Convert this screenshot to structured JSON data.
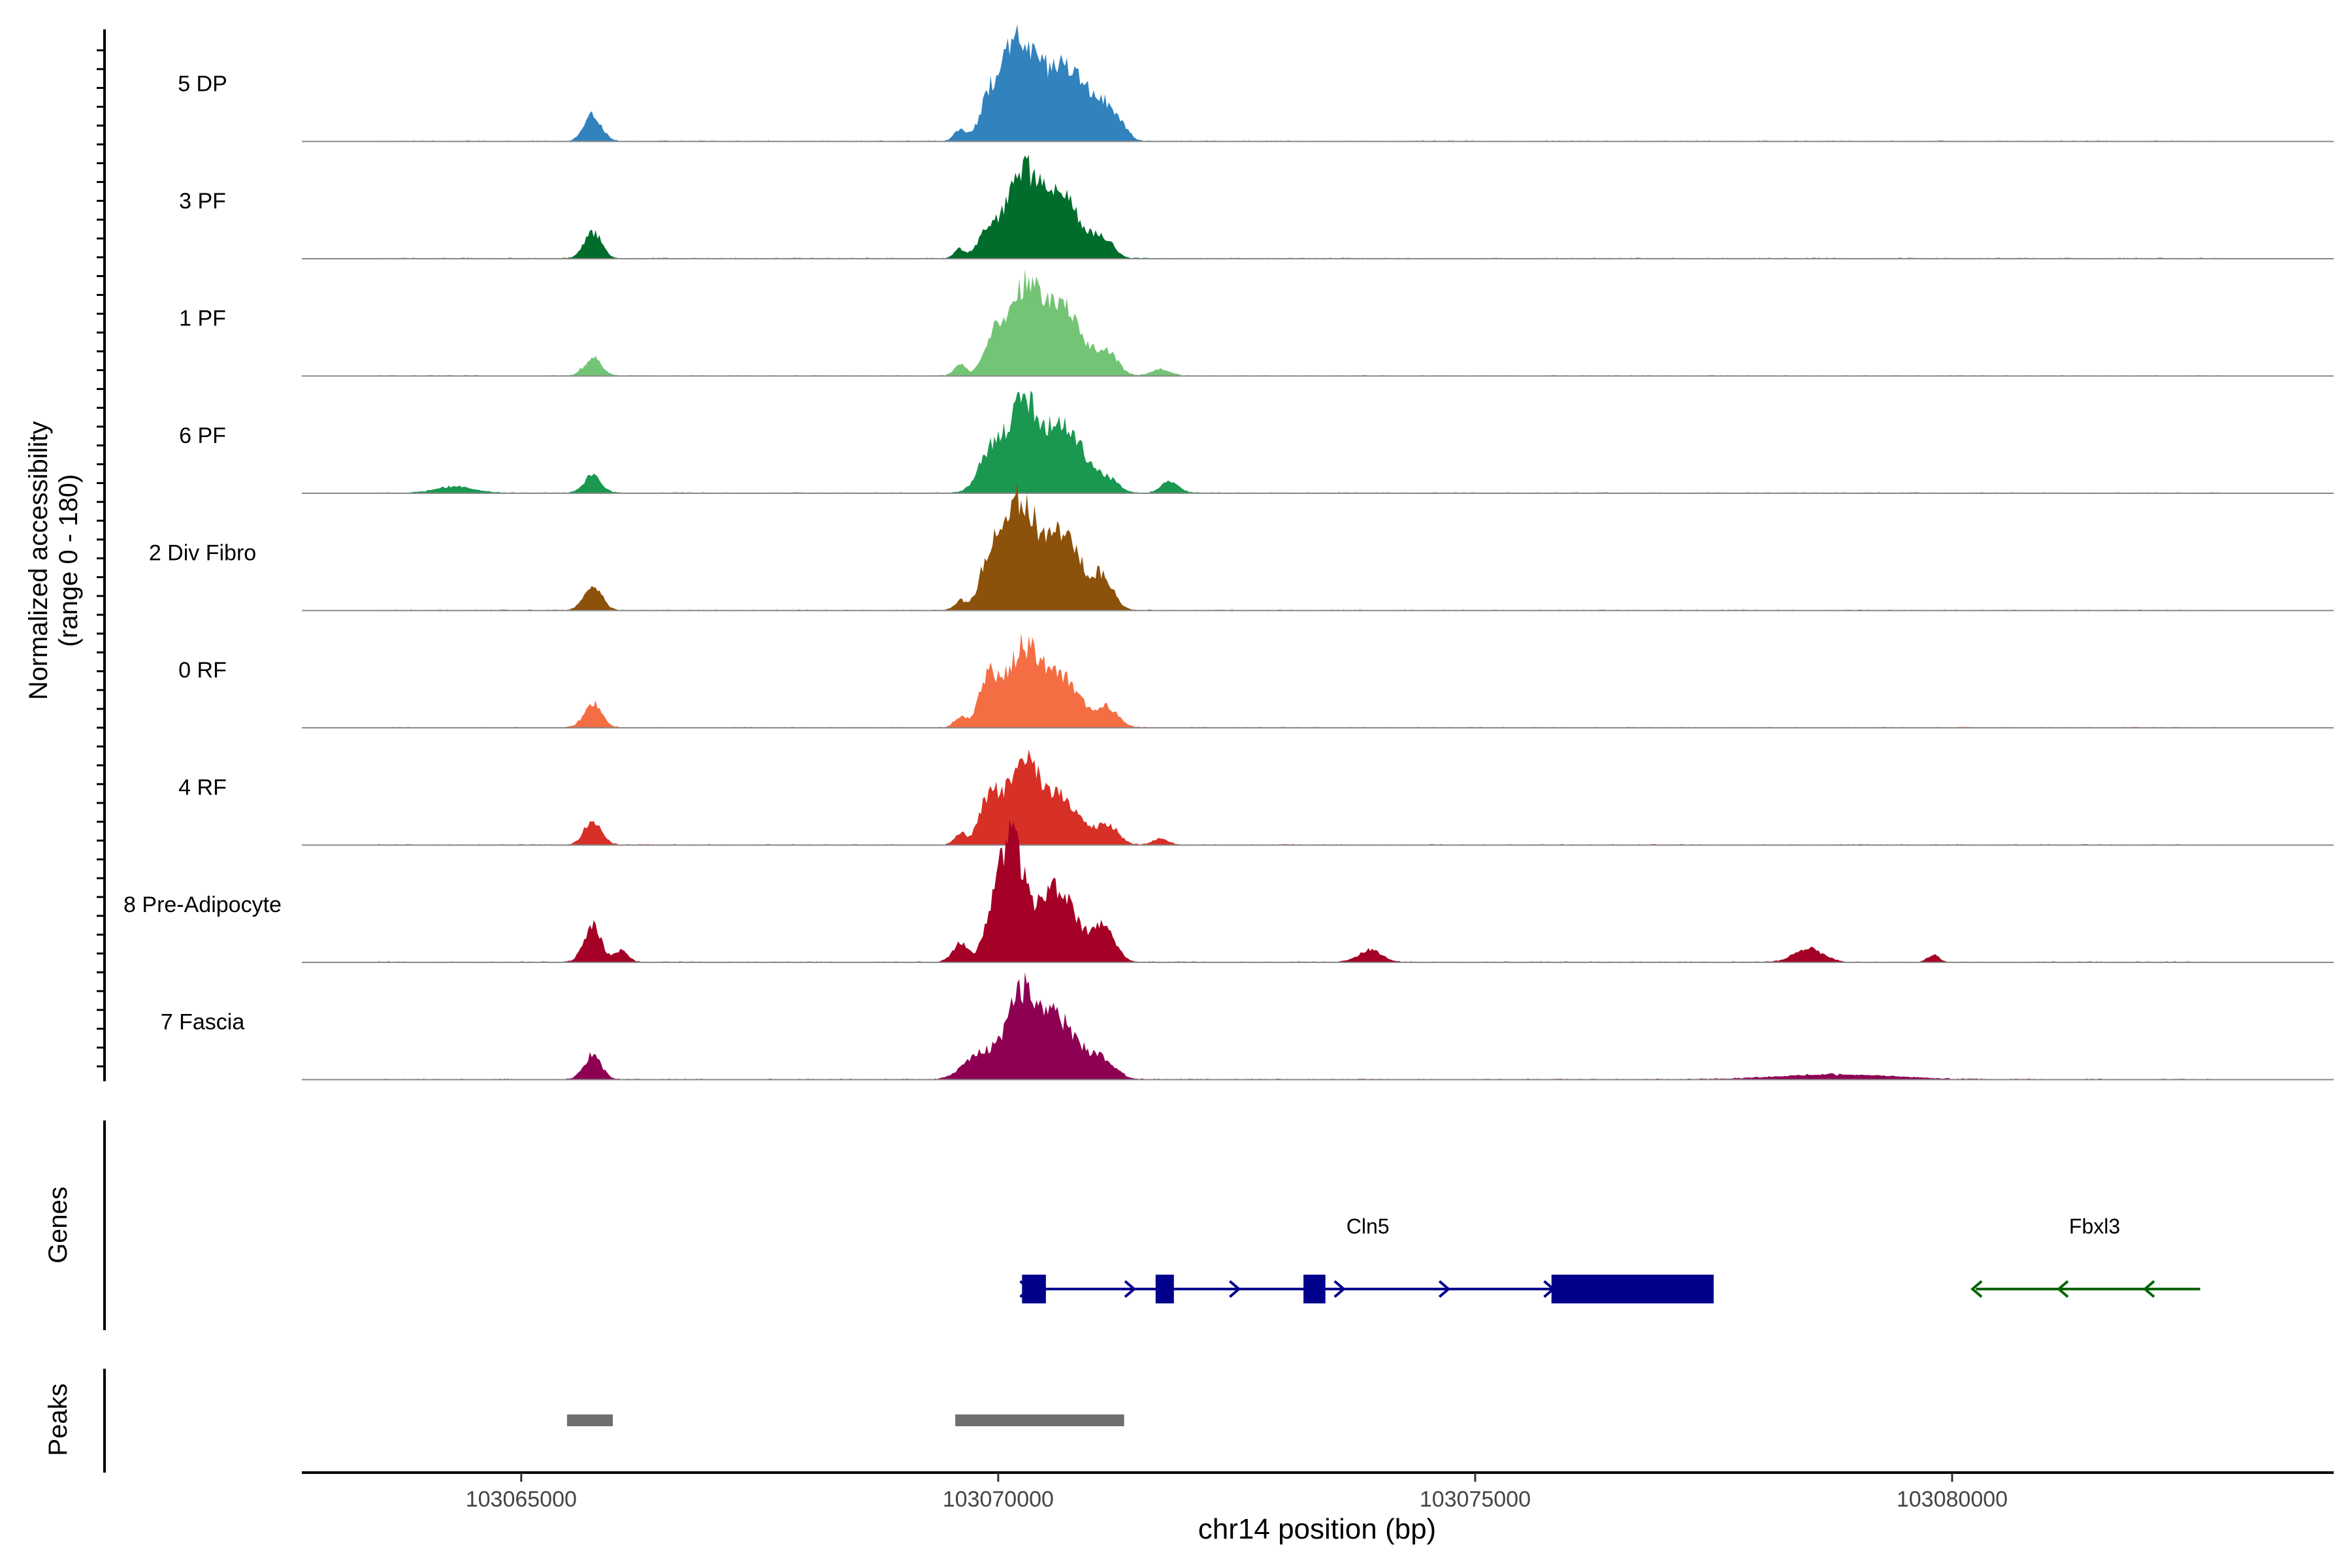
{
  "chart_data": {
    "type": "area",
    "title": "",
    "chromosome": "chr14",
    "xlabel": "chr14 position (bp)",
    "xlim": [
      103062700,
      103084000
    ],
    "x_ticks": [
      103065000,
      103070000,
      103075000,
      103080000
    ],
    "x_tick_labels": [
      "103065000",
      "103070000",
      "103075000",
      "103080000"
    ],
    "coverage_ylabel_line1": "Normalized accessibility",
    "coverage_ylabel_line2": "(range 0 - 180)",
    "ylim": [
      0,
      180
    ],
    "genes_label": "Genes",
    "peaks_label": "Peaks",
    "series": [
      {
        "name": "5 DP",
        "color": "#3182BD",
        "peaks": [
          [
            103065750,
            42,
            90
          ],
          [
            103069600,
            20,
            60
          ],
          [
            103069900,
            45,
            100
          ],
          [
            103070200,
            155,
            180
          ],
          [
            103070700,
            120,
            220
          ],
          [
            103071100,
            45,
            120
          ],
          [
            103071300,
            15,
            80
          ]
        ]
      },
      {
        "name": "3 PF",
        "color": "#006D2C",
        "peaks": [
          [
            103065750,
            42,
            90
          ],
          [
            103069600,
            15,
            60
          ],
          [
            103069900,
            48,
            100
          ],
          [
            103070250,
            130,
            160
          ],
          [
            103070650,
            100,
            200
          ],
          [
            103071100,
            28,
            110
          ]
        ]
      },
      {
        "name": "1 PF",
        "color": "#74C476",
        "peaks": [
          [
            103065750,
            28,
            90
          ],
          [
            103069600,
            18,
            60
          ],
          [
            103069950,
            60,
            100
          ],
          [
            103070300,
            140,
            170
          ],
          [
            103070700,
            100,
            200
          ],
          [
            103071150,
            32,
            110
          ],
          [
            103071700,
            10,
            100
          ]
        ]
      },
      {
        "name": "6 PF",
        "color": "#1A9850",
        "peaks": [
          [
            103065750,
            28,
            90
          ],
          [
            103064300,
            10,
            200
          ],
          [
            103069900,
            55,
            120
          ],
          [
            103070250,
            140,
            170
          ],
          [
            103070700,
            105,
            200
          ],
          [
            103071150,
            20,
            110
          ],
          [
            103071800,
            20,
            90
          ]
        ]
      },
      {
        "name": "2 Div Fibro",
        "color": "#8C510A",
        "peaks": [
          [
            103065750,
            42,
            90
          ],
          [
            103069600,
            15,
            60
          ],
          [
            103069900,
            70,
            100
          ],
          [
            103070200,
            175,
            160
          ],
          [
            103070650,
            130,
            200
          ],
          [
            103071100,
            48,
            110
          ]
        ]
      },
      {
        "name": "0 RF",
        "color": "#F46D43",
        "peaks": [
          [
            103065750,
            40,
            90
          ],
          [
            103069600,
            18,
            60
          ],
          [
            103069900,
            75,
            100
          ],
          [
            103070250,
            120,
            170
          ],
          [
            103070650,
            80,
            200
          ],
          [
            103071150,
            30,
            110
          ]
        ]
      },
      {
        "name": "4 RF",
        "color": "#D73027",
        "peaks": [
          [
            103065750,
            40,
            90
          ],
          [
            103069600,
            18,
            60
          ],
          [
            103069900,
            70,
            100
          ],
          [
            103070250,
            125,
            170
          ],
          [
            103070650,
            75,
            200
          ],
          [
            103071150,
            30,
            110
          ],
          [
            103071700,
            10,
            80
          ]
        ]
      },
      {
        "name": "8 Pre-Adipocyte",
        "color": "#A50026",
        "peaks": [
          [
            103065750,
            58,
            90
          ],
          [
            103066050,
            18,
            70
          ],
          [
            103069600,
            30,
            80
          ],
          [
            103069950,
            70,
            100
          ],
          [
            103070150,
            180,
            120
          ],
          [
            103070600,
            120,
            200
          ],
          [
            103071100,
            55,
            120
          ],
          [
            103073900,
            20,
            120
          ],
          [
            103078500,
            22,
            150
          ],
          [
            103079800,
            12,
            60
          ]
        ]
      },
      {
        "name": "7 Fascia",
        "color": "#8E0152",
        "peaks": [
          [
            103065750,
            40,
            90
          ],
          [
            103069800,
            40,
            160
          ],
          [
            103070250,
            135,
            170
          ],
          [
            103070650,
            90,
            200
          ],
          [
            103071100,
            30,
            130
          ],
          [
            103078800,
            8,
            600
          ]
        ]
      }
    ],
    "genes": [
      {
        "name": "Cln5",
        "strand": "+",
        "color": "#00008B",
        "start": 103070250,
        "end": 103077500,
        "exons": [
          [
            103070250,
            103070500
          ],
          [
            103071650,
            103071800
          ],
          [
            103073200,
            103073430
          ],
          [
            103075800,
            103077500
          ]
        ]
      },
      {
        "name": "Fbxl3",
        "strand": "-",
        "color": "#006400",
        "start": 103080250,
        "end": 103082600,
        "exons": []
      }
    ],
    "peak_regions": [
      [
        103065480,
        103065960
      ],
      [
        103069550,
        103071320
      ]
    ]
  }
}
